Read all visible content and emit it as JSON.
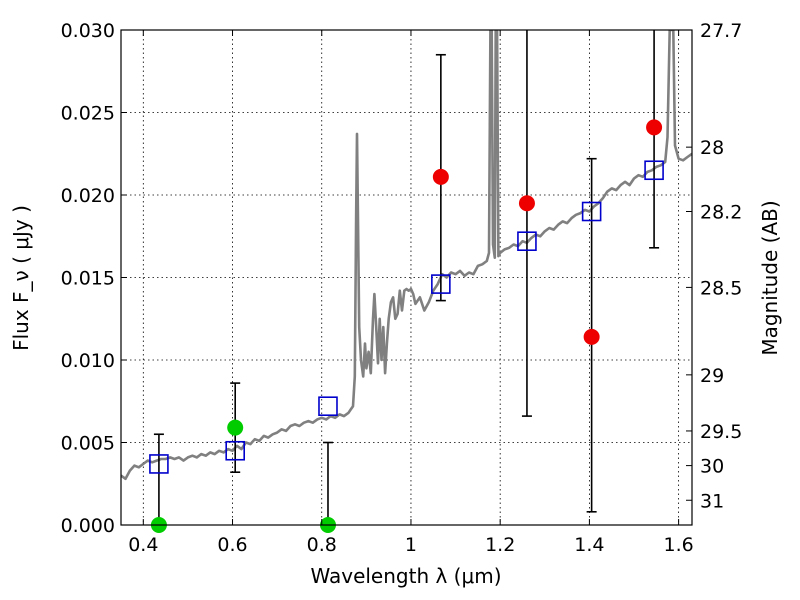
{
  "chart_data": {
    "type": "scatter",
    "xlabel": "Wavelength  λ (μm)",
    "ylabel": "Flux  F_ν  ( μJy )",
    "ylabel_right": "Magnitude (AB)",
    "xlim": [
      0.35,
      1.63
    ],
    "ylim": [
      0.0,
      0.03
    ],
    "grid": true,
    "x_ticks": [
      {
        "value": 0.4,
        "label": "0.4"
      },
      {
        "value": 0.6,
        "label": "0.6"
      },
      {
        "value": 0.8,
        "label": "0.8"
      },
      {
        "value": 1.0,
        "label": "1"
      },
      {
        "value": 1.2,
        "label": "1.2"
      },
      {
        "value": 1.4,
        "label": "1.4"
      },
      {
        "value": 1.6,
        "label": "1.6"
      }
    ],
    "y_ticks": [
      {
        "value": 0.0,
        "label": "0.000"
      },
      {
        "value": 0.005,
        "label": "0.005"
      },
      {
        "value": 0.01,
        "label": "0.010"
      },
      {
        "value": 0.015,
        "label": "0.015"
      },
      {
        "value": 0.02,
        "label": "0.020"
      },
      {
        "value": 0.025,
        "label": "0.025"
      },
      {
        "value": 0.03,
        "label": "0.030"
      }
    ],
    "mag_ticks": [
      {
        "flux": 0.03,
        "label": "27.7"
      },
      {
        "flux": 0.0229,
        "label": "28"
      },
      {
        "flux": 0.019,
        "label": "28.2"
      },
      {
        "flux": 0.0144,
        "label": "28.5"
      },
      {
        "flux": 0.0091,
        "label": "29"
      },
      {
        "flux": 0.0057,
        "label": "29.5"
      },
      {
        "flux": 0.0036,
        "label": "30"
      },
      {
        "flux": 0.0015,
        "label": "31"
      }
    ],
    "colors": {
      "model": "#808080",
      "model_points": "#0000cc",
      "observed_red": "#ee0000",
      "observed_green": "#00cc00",
      "errorbar": "#000000"
    },
    "model_points": [
      {
        "x": 0.435,
        "y": 0.0037
      },
      {
        "x": 0.606,
        "y": 0.0045
      },
      {
        "x": 0.814,
        "y": 0.0072
      },
      {
        "x": 1.067,
        "y": 0.0146
      },
      {
        "x": 1.26,
        "y": 0.0172
      },
      {
        "x": 1.405,
        "y": 0.019
      },
      {
        "x": 1.545,
        "y": 0.0215
      }
    ],
    "observed": [
      {
        "x": 0.435,
        "y": 0.0,
        "color": "green",
        "err_low": 0.0,
        "err_high": 0.0055
      },
      {
        "x": 0.606,
        "y": 0.0059,
        "color": "green",
        "err_low": 0.0032,
        "err_high": 0.0086
      },
      {
        "x": 0.814,
        "y": 0.0,
        "color": "green",
        "err_low": 0.0,
        "err_high": 0.005
      },
      {
        "x": 1.067,
        "y": 0.0211,
        "color": "red",
        "err_low": 0.0136,
        "err_high": 0.0285
      },
      {
        "x": 1.26,
        "y": 0.0195,
        "color": "red",
        "err_low": 0.0066,
        "err_high": 0.03
      },
      {
        "x": 1.405,
        "y": 0.0114,
        "color": "red",
        "err_low": 0.0008,
        "err_high": 0.0222
      },
      {
        "x": 1.545,
        "y": 0.0241,
        "color": "red",
        "err_low": 0.0168,
        "err_high": 0.03
      }
    ],
    "model_spectrum": [
      [
        0.35,
        0.003
      ],
      [
        0.36,
        0.0028
      ],
      [
        0.37,
        0.0033
      ],
      [
        0.38,
        0.0036
      ],
      [
        0.39,
        0.0035
      ],
      [
        0.4,
        0.0037
      ],
      [
        0.41,
        0.0039
      ],
      [
        0.42,
        0.0038
      ],
      [
        0.43,
        0.0039
      ],
      [
        0.44,
        0.004
      ],
      [
        0.45,
        0.004
      ],
      [
        0.46,
        0.0041
      ],
      [
        0.47,
        0.004
      ],
      [
        0.48,
        0.0041
      ],
      [
        0.49,
        0.0039
      ],
      [
        0.5,
        0.0041
      ],
      [
        0.51,
        0.0042
      ],
      [
        0.52,
        0.0041
      ],
      [
        0.53,
        0.0043
      ],
      [
        0.54,
        0.0042
      ],
      [
        0.55,
        0.0044
      ],
      [
        0.56,
        0.0043
      ],
      [
        0.57,
        0.0045
      ],
      [
        0.58,
        0.0044
      ],
      [
        0.59,
        0.0046
      ],
      [
        0.6,
        0.0045
      ],
      [
        0.61,
        0.0048
      ],
      [
        0.62,
        0.0046
      ],
      [
        0.63,
        0.005
      ],
      [
        0.64,
        0.0049
      ],
      [
        0.65,
        0.0052
      ],
      [
        0.66,
        0.0051
      ],
      [
        0.67,
        0.0054
      ],
      [
        0.68,
        0.0053
      ],
      [
        0.69,
        0.0055
      ],
      [
        0.7,
        0.0056
      ],
      [
        0.71,
        0.0058
      ],
      [
        0.72,
        0.0057
      ],
      [
        0.73,
        0.006
      ],
      [
        0.74,
        0.0061
      ],
      [
        0.75,
        0.006
      ],
      [
        0.76,
        0.0062
      ],
      [
        0.77,
        0.0063
      ],
      [
        0.78,
        0.0062
      ],
      [
        0.79,
        0.0064
      ],
      [
        0.8,
        0.0065
      ],
      [
        0.81,
        0.0064
      ],
      [
        0.82,
        0.0066
      ],
      [
        0.83,
        0.0065
      ],
      [
        0.84,
        0.0067
      ],
      [
        0.85,
        0.0066
      ],
      [
        0.86,
        0.0068
      ],
      [
        0.865,
        0.007
      ],
      [
        0.87,
        0.0072
      ],
      [
        0.874,
        0.009
      ],
      [
        0.877,
        0.0185
      ],
      [
        0.879,
        0.0237
      ],
      [
        0.881,
        0.019
      ],
      [
        0.884,
        0.012
      ],
      [
        0.888,
        0.01
      ],
      [
        0.893,
        0.009
      ],
      [
        0.897,
        0.011
      ],
      [
        0.9,
        0.0095
      ],
      [
        0.905,
        0.0105
      ],
      [
        0.91,
        0.0092
      ],
      [
        0.915,
        0.0125
      ],
      [
        0.918,
        0.014
      ],
      [
        0.922,
        0.012
      ],
      [
        0.926,
        0.0098
      ],
      [
        0.93,
        0.0125
      ],
      [
        0.934,
        0.01
      ],
      [
        0.938,
        0.012
      ],
      [
        0.942,
        0.0092
      ],
      [
        0.946,
        0.011
      ],
      [
        0.95,
        0.0125
      ],
      [
        0.955,
        0.0135
      ],
      [
        0.96,
        0.0138
      ],
      [
        0.965,
        0.0125
      ],
      [
        0.97,
        0.0128
      ],
      [
        0.975,
        0.0142
      ],
      [
        0.98,
        0.013
      ],
      [
        0.985,
        0.0142
      ],
      [
        0.99,
        0.0143
      ],
      [
        0.995,
        0.0142
      ],
      [
        1.0,
        0.0143
      ],
      [
        1.005,
        0.014
      ],
      [
        1.01,
        0.0134
      ],
      [
        1.02,
        0.0138
      ],
      [
        1.03,
        0.013
      ],
      [
        1.04,
        0.0135
      ],
      [
        1.05,
        0.0142
      ],
      [
        1.06,
        0.0146
      ],
      [
        1.07,
        0.0152
      ],
      [
        1.08,
        0.015
      ],
      [
        1.09,
        0.0153
      ],
      [
        1.1,
        0.0152
      ],
      [
        1.11,
        0.0154
      ],
      [
        1.12,
        0.0151
      ],
      [
        1.13,
        0.0153
      ],
      [
        1.14,
        0.0152
      ],
      [
        1.15,
        0.0157
      ],
      [
        1.16,
        0.0158
      ],
      [
        1.17,
        0.016
      ],
      [
        1.175,
        0.0165
      ],
      [
        1.178,
        0.03
      ],
      [
        1.181,
        0.03
      ],
      [
        1.184,
        0.017
      ],
      [
        1.188,
        0.0162
      ],
      [
        1.19,
        0.03
      ],
      [
        1.193,
        0.03
      ],
      [
        1.196,
        0.0163
      ],
      [
        1.2,
        0.0165
      ],
      [
        1.21,
        0.0167
      ],
      [
        1.22,
        0.0168
      ],
      [
        1.23,
        0.017
      ],
      [
        1.24,
        0.0169
      ],
      [
        1.25,
        0.0172
      ],
      [
        1.26,
        0.0171
      ],
      [
        1.27,
        0.0174
      ],
      [
        1.28,
        0.0176
      ],
      [
        1.29,
        0.0175
      ],
      [
        1.3,
        0.0178
      ],
      [
        1.31,
        0.018
      ],
      [
        1.32,
        0.0179
      ],
      [
        1.33,
        0.0182
      ],
      [
        1.34,
        0.0184
      ],
      [
        1.35,
        0.0183
      ],
      [
        1.36,
        0.0186
      ],
      [
        1.37,
        0.0188
      ],
      [
        1.38,
        0.0189
      ],
      [
        1.39,
        0.0191
      ],
      [
        1.4,
        0.019
      ],
      [
        1.41,
        0.0193
      ],
      [
        1.42,
        0.0195
      ],
      [
        1.43,
        0.0198
      ],
      [
        1.44,
        0.0202
      ],
      [
        1.45,
        0.0204
      ],
      [
        1.46,
        0.0203
      ],
      [
        1.47,
        0.0206
      ],
      [
        1.48,
        0.0208
      ],
      [
        1.49,
        0.0206
      ],
      [
        1.5,
        0.021
      ],
      [
        1.51,
        0.0212
      ],
      [
        1.52,
        0.0211
      ],
      [
        1.53,
        0.0214
      ],
      [
        1.54,
        0.0215
      ],
      [
        1.55,
        0.0217
      ],
      [
        1.56,
        0.0218
      ],
      [
        1.57,
        0.022
      ],
      [
        1.575,
        0.0235
      ],
      [
        1.58,
        0.03
      ],
      [
        1.588,
        0.03
      ],
      [
        1.592,
        0.023
      ],
      [
        1.6,
        0.0222
      ],
      [
        1.61,
        0.0221
      ],
      [
        1.62,
        0.0223
      ],
      [
        1.63,
        0.0225
      ]
    ]
  }
}
